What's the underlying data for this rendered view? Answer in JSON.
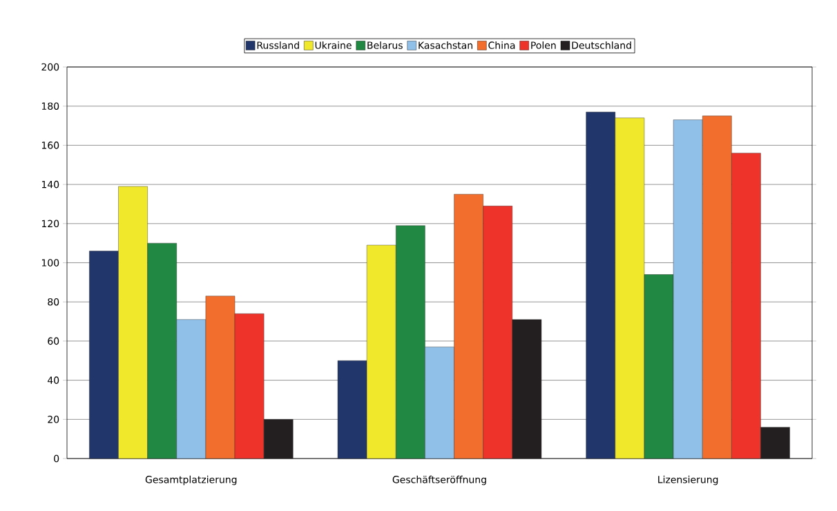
{
  "chart_data": {
    "type": "bar",
    "categories": [
      "Gesamtplatzierung",
      "Geschäftseröffnung",
      "Lizensierung"
    ],
    "series": [
      {
        "name": "Russland",
        "color": "#21366b",
        "values": [
          106,
          50,
          177
        ]
      },
      {
        "name": "Ukraine",
        "color": "#f0e82a",
        "values": [
          139,
          109,
          174
        ]
      },
      {
        "name": "Belarus",
        "color": "#208842",
        "values": [
          110,
          119,
          94
        ]
      },
      {
        "name": "Kasachstan",
        "color": "#90c0e8",
        "values": [
          71,
          57,
          173
        ]
      },
      {
        "name": "China",
        "color": "#f26e2c",
        "values": [
          83,
          135,
          175
        ]
      },
      {
        "name": "Polen",
        "color": "#ee332b",
        "values": [
          74,
          129,
          156
        ]
      },
      {
        "name": "Deutschland",
        "color": "#231f20",
        "values": [
          20,
          71,
          16
        ]
      }
    ],
    "ylim": [
      0,
      200
    ],
    "yticks": [
      0,
      20,
      40,
      60,
      80,
      100,
      120,
      140,
      160,
      180,
      200
    ],
    "grid": "y",
    "legend": "top"
  }
}
